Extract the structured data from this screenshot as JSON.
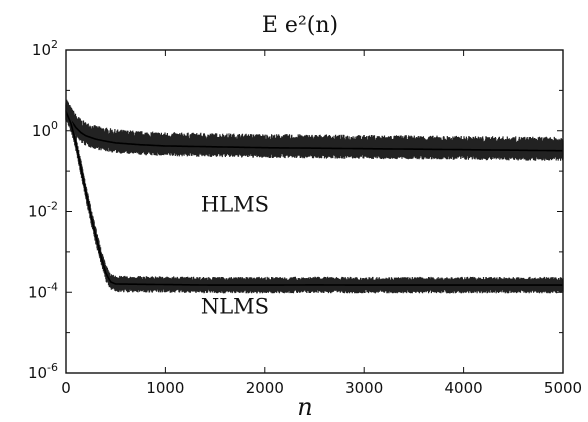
{
  "chart_data": {
    "type": "line",
    "title": "E e²(n)",
    "xlabel": "n",
    "ylabel": "",
    "xlim": [
      0,
      5000
    ],
    "ylim": [
      1e-06,
      100
    ],
    "yscale": "log",
    "grid": false,
    "x_ticks": [
      0,
      1000,
      2000,
      3000,
      4000,
      5000
    ],
    "x_tick_labels": [
      "0",
      "1000",
      "2000",
      "3000",
      "4000",
      "5000"
    ],
    "y_ticks": [
      1e-06,
      0.0001,
      0.01,
      1,
      100
    ],
    "y_tick_labels": [
      {
        "base": "10",
        "exp": "-6"
      },
      {
        "base": "10",
        "exp": "-4"
      },
      {
        "base": "10",
        "exp": "-2"
      },
      {
        "base": "10",
        "exp": "0"
      },
      {
        "base": "10",
        "exp": "2"
      }
    ],
    "series": [
      {
        "name": "HLMS",
        "label_pos": [
          1700,
          0.01
        ],
        "x": [
          0,
          50,
          100,
          150,
          200,
          300,
          400,
          500,
          750,
          1000,
          1500,
          2000,
          2500,
          3000,
          3500,
          4000,
          4500,
          5000
        ],
        "y": [
          3.2,
          1.8,
          1.2,
          0.9,
          0.75,
          0.62,
          0.55,
          0.5,
          0.45,
          0.42,
          0.4,
          0.38,
          0.37,
          0.36,
          0.35,
          0.34,
          0.33,
          0.32
        ],
        "band": [
          2.2,
          1.8
        ]
      },
      {
        "name": "NLMS",
        "label_pos": [
          1700,
          3e-05
        ],
        "x": [
          0,
          50,
          100,
          150,
          200,
          250,
          300,
          350,
          400,
          450,
          500,
          1000,
          1500,
          2000,
          2500,
          3000,
          3500,
          4000,
          4500,
          5000
        ],
        "y": [
          3,
          1.5,
          0.5,
          0.12,
          0.03,
          0.008,
          0.0025,
          0.0008,
          0.0003,
          0.00018,
          0.00016,
          0.000155,
          0.00015,
          0.00015,
          0.000152,
          0.00015,
          0.00015,
          0.00015,
          0.00015,
          0.00015
        ],
        "band": [
          1.6,
          1.6
        ]
      }
    ]
  }
}
